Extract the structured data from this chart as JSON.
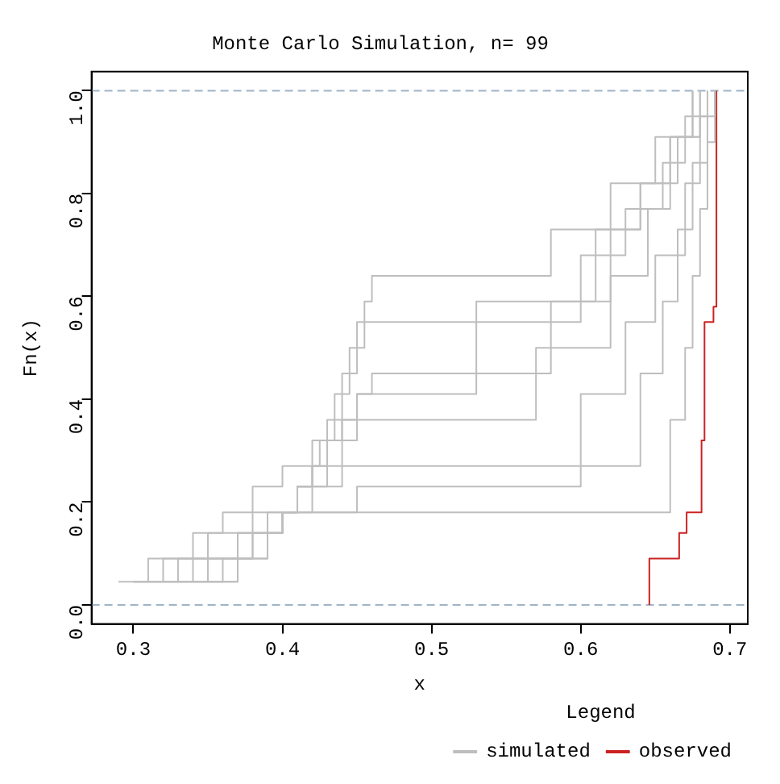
{
  "chart_data": {
    "type": "step",
    "title": "Monte Carlo Simulation, n= 99",
    "xlabel": "x",
    "ylabel": "Fn(x)",
    "legend_title": "Legend",
    "legend": "bottom right",
    "grid": false,
    "marker": "none",
    "line_style": "solid",
    "xlim": [
      0.272,
      0.712
    ],
    "xticks": [
      0.3,
      0.4,
      0.5,
      0.6,
      0.7
    ],
    "ylim": [
      -0.037,
      1.037
    ],
    "yticks": [
      {
        "value": 0,
        "label": "0.0"
      },
      0.2,
      0.4,
      0.6,
      0.8,
      {
        "value": 1,
        "label": "1.0"
      }
    ],
    "ref_lines": [
      {
        "axis": "y",
        "value": 0,
        "color": "#a0b4c8",
        "line_style": "dashed"
      },
      {
        "axis": "y",
        "value": 1,
        "color": "#a0b4c8",
        "line_style": "dashed"
      }
    ],
    "series": [
      {
        "name": "simulated",
        "color": "#bebebe",
        "x": [
          0.29,
          0.31,
          0.35,
          0.38,
          0.66,
          0.67,
          0.675,
          0.68,
          0.685,
          0.69
        ],
        "values": [
          0.045,
          0.09,
          0.14,
          0.18,
          0.36,
          0.5,
          0.64,
          0.77,
          0.9,
          1.0
        ]
      },
      {
        "color": "#bebebe",
        "x": [
          0.3,
          0.33,
          0.37,
          0.4,
          0.45,
          0.6,
          0.63,
          0.65,
          0.67,
          0.68,
          0.69
        ],
        "values": [
          0.045,
          0.09,
          0.14,
          0.18,
          0.23,
          0.41,
          0.55,
          0.68,
          0.82,
          0.95,
          1.0
        ]
      },
      {
        "color": "#bebebe",
        "x": [
          0.31,
          0.34,
          0.37,
          0.39,
          0.41,
          0.44,
          0.64,
          0.655,
          0.665,
          0.675,
          0.685
        ],
        "values": [
          0.045,
          0.09,
          0.14,
          0.18,
          0.23,
          0.27,
          0.45,
          0.59,
          0.73,
          0.86,
          1.0
        ]
      },
      {
        "color": "#bebebe",
        "x": [
          0.32,
          0.35,
          0.38,
          0.4,
          0.42,
          0.43,
          0.44,
          0.45,
          0.57,
          0.62,
          0.645,
          0.66,
          0.675
        ],
        "values": [
          0.045,
          0.09,
          0.14,
          0.18,
          0.23,
          0.27,
          0.32,
          0.36,
          0.5,
          0.64,
          0.77,
          0.91,
          1.0
        ]
      },
      {
        "color": "#bebebe",
        "x": [
          0.33,
          0.36,
          0.38,
          0.4,
          0.41,
          0.42,
          0.43,
          0.44,
          0.45,
          0.46,
          0.58,
          0.62,
          0.64,
          0.665,
          0.68
        ],
        "values": [
          0.045,
          0.09,
          0.14,
          0.18,
          0.23,
          0.27,
          0.32,
          0.36,
          0.41,
          0.45,
          0.59,
          0.73,
          0.82,
          0.91,
          1.0
        ]
      },
      {
        "color": "#bebebe",
        "x": [
          0.34,
          0.37,
          0.39,
          0.4,
          0.41,
          0.42,
          0.43,
          0.435,
          0.44,
          0.445,
          0.45,
          0.455,
          0.6,
          0.63,
          0.655,
          0.67,
          0.685
        ],
        "values": [
          0.045,
          0.09,
          0.14,
          0.18,
          0.23,
          0.27,
          0.32,
          0.36,
          0.41,
          0.45,
          0.5,
          0.55,
          0.68,
          0.77,
          0.86,
          0.95,
          1.0
        ]
      },
      {
        "color": "#bebebe",
        "x": [
          0.35,
          0.37,
          0.39,
          0.4,
          0.41,
          0.42,
          0.425,
          0.43,
          0.435,
          0.44,
          0.445,
          0.45,
          0.455,
          0.46,
          0.58,
          0.62,
          0.65,
          0.675
        ],
        "values": [
          0.045,
          0.09,
          0.14,
          0.18,
          0.23,
          0.27,
          0.32,
          0.36,
          0.41,
          0.45,
          0.5,
          0.55,
          0.59,
          0.64,
          0.73,
          0.82,
          0.91,
          1.0
        ]
      },
      {
        "color": "#bebebe",
        "x": [
          0.3,
          0.32,
          0.34,
          0.36,
          0.38,
          0.4,
          0.42,
          0.44,
          0.45,
          0.53,
          0.61,
          0.64,
          0.66,
          0.68
        ],
        "values": [
          0.045,
          0.09,
          0.14,
          0.18,
          0.23,
          0.27,
          0.32,
          0.36,
          0.41,
          0.59,
          0.73,
          0.82,
          0.91,
          1.0
        ]
      },
      {
        "name": "observed",
        "color": "#cc2222",
        "x": [
          0.646,
          0.646,
          0.666,
          0.671,
          0.681,
          0.683,
          0.689,
          0.691
        ],
        "values": [
          0,
          0.09,
          0.14,
          0.18,
          0.32,
          0.55,
          0.58,
          1.0
        ]
      }
    ]
  }
}
